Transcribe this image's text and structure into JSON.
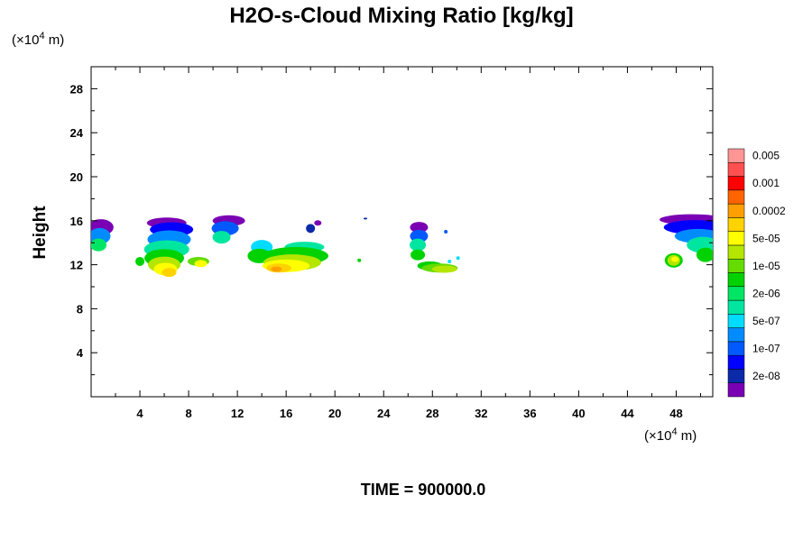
{
  "chart_data": {
    "type": "heatmap",
    "title": "H2O-s-Cloud Mixing Ratio [kg/kg]",
    "ylabel": "Height",
    "x_unit_prefix": "(×10",
    "x_unit_exp": "4",
    "x_unit_suffix": " m)",
    "y_unit_prefix": "(×10",
    "y_unit_exp": "4",
    "y_unit_suffix": " m)",
    "xlim": [
      0,
      51
    ],
    "ylim": [
      0,
      30
    ],
    "x_ticks": [
      "4",
      "8",
      "12",
      "16",
      "20",
      "24",
      "28",
      "32",
      "36",
      "40",
      "44",
      "48"
    ],
    "y_ticks": [
      "4",
      "8",
      "12",
      "16",
      "20",
      "24",
      "28"
    ],
    "colorbar_colors": [
      "#7a00b4",
      "#0a2aa8",
      "#0000ff",
      "#005aff",
      "#008cff",
      "#00dcff",
      "#00e6a0",
      "#00e664",
      "#00d200",
      "#64dc00",
      "#b4e600",
      "#ffff00",
      "#ffd200",
      "#ffa000",
      "#ff6400",
      "#ff0000",
      "#ff5050",
      "#ff9696"
    ],
    "colorbar_labels": [
      "2e-08",
      "1e-07",
      "5e-07",
      "2e-06",
      "1e-05",
      "5e-05",
      "0.0002",
      "0.001",
      "0.005"
    ],
    "time_label": "TIME = 900000.0"
  }
}
